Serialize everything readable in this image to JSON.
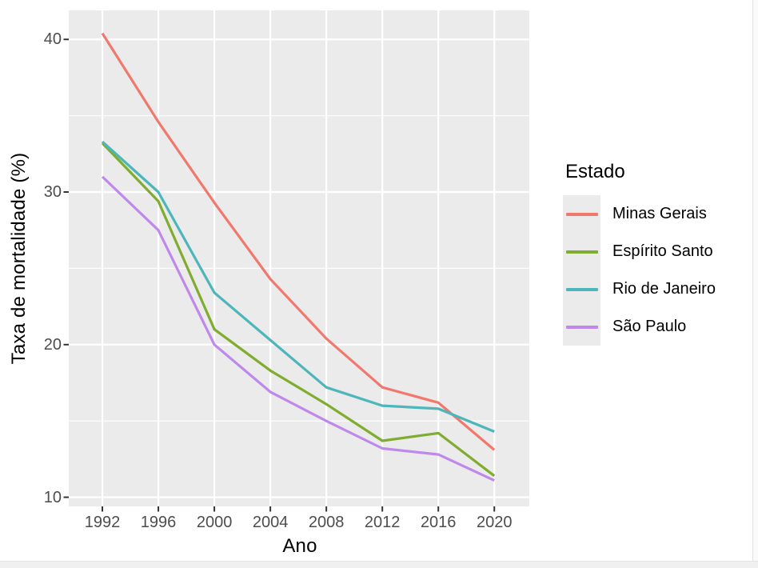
{
  "chart_data": {
    "type": "line",
    "title": "",
    "xlabel": "Ano",
    "ylabel": "Taxa de mortalidade (%)",
    "legend_title": "Estado",
    "legend_position": "right",
    "grid": true,
    "x": [
      1992,
      1996,
      2000,
      2004,
      2008,
      2012,
      2016,
      2020
    ],
    "x_tick_labels": [
      "1992",
      "1996",
      "2000",
      "2004",
      "2008",
      "2012",
      "2016",
      "2020"
    ],
    "y_major": [
      10,
      20,
      30,
      40
    ],
    "y_tick_labels": [
      "10",
      "20",
      "30",
      "40"
    ],
    "y_minor": [
      15,
      25,
      35
    ],
    "xlim": [
      1989.6,
      2022.5
    ],
    "ylim": [
      9.4,
      41.9
    ],
    "series": [
      {
        "name": "Minas Gerais",
        "color": "#F0786D",
        "values": [
          40.4,
          34.6,
          29.3,
          24.3,
          20.4,
          17.2,
          16.2,
          13.1
        ]
      },
      {
        "name": "Espírito Santo",
        "color": "#80AC2F",
        "values": [
          33.2,
          29.4,
          21.0,
          18.3,
          16.1,
          13.7,
          14.2,
          11.4
        ]
      },
      {
        "name": "Rio de Janeiro",
        "color": "#4DB6BA",
        "values": [
          33.3,
          30.0,
          23.4,
          20.3,
          17.2,
          16.0,
          15.8,
          14.3
        ]
      },
      {
        "name": "São Paulo",
        "color": "#BF89EC",
        "values": [
          31.0,
          27.5,
          20.0,
          16.9,
          15.0,
          13.2,
          12.8,
          11.1
        ]
      }
    ],
    "style": {
      "page_bg": "#FFFFFF",
      "panel_bg": "#EBEBEB",
      "grid_color": "#FFFFFF",
      "tick_mark_color": "#333333",
      "tick_label_color": "#4D4D4D",
      "axis_title_color": "#000000",
      "legend_key_bg": "#EBEBEB",
      "edge_strip_bg": "#F0F0F0",
      "edge_strip_border": "#E2E2E2"
    }
  }
}
